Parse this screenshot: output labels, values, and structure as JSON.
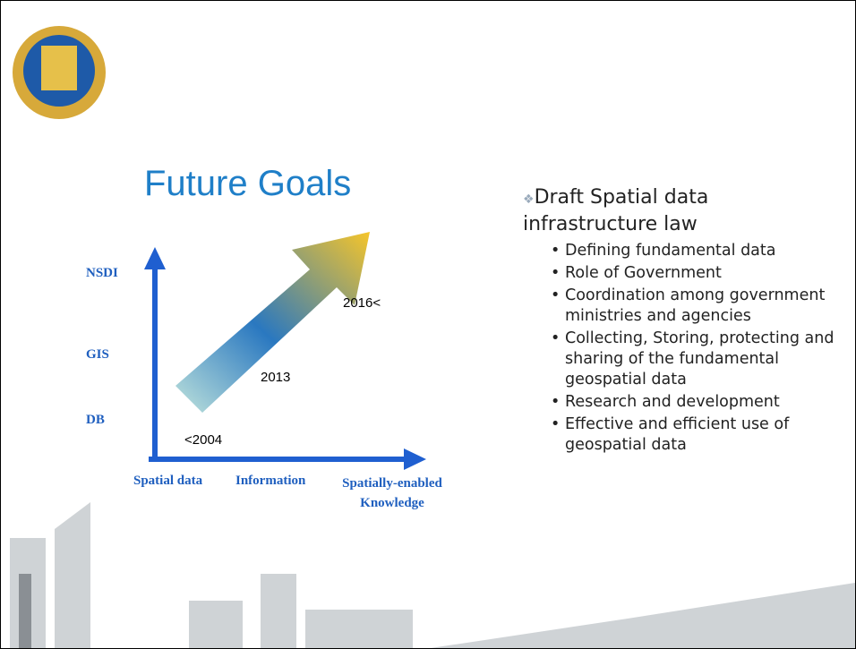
{
  "title": "Future Goals",
  "diagram": {
    "y_labels": [
      "NSDI",
      "GIS",
      "DB"
    ],
    "x_labels": [
      "Spatial data",
      "Information",
      "Spatially-enabled Knowledge"
    ],
    "arrow_labels": [
      "<2004",
      "2013",
      "2016<"
    ]
  },
  "bullets": {
    "text": "Draft Spatial data infrastructure law",
    "items": [
      "Defining fundamental data",
      "Role of Government",
      "Coordination among government ministries and agencies",
      "Collecting, Storing, protecting and sharing  of the fundamental geospatial data",
      "Research and development",
      "Effective and efficient use of geospatial data"
    ]
  }
}
